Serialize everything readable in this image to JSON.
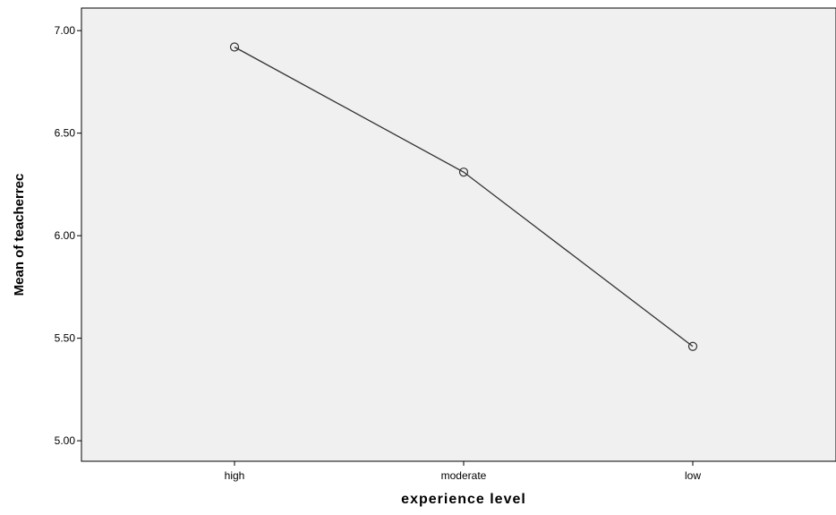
{
  "chart_data": {
    "type": "line",
    "title": "",
    "xlabel": "experience level",
    "ylabel": "Mean of teacherrec",
    "categories": [
      "high",
      "moderate",
      "low"
    ],
    "series": [
      {
        "values": [
          6.92,
          6.31,
          5.46
        ],
        "marker": "open-circle"
      }
    ],
    "ylim": [
      4.9,
      7.11
    ],
    "yticks": [
      5.0,
      5.5,
      6.0,
      6.5,
      7.0
    ],
    "ytick_labels": [
      "5.00",
      "5.50",
      "6.00",
      "6.50",
      "7.00"
    ],
    "grid": false,
    "legend": "none",
    "colors": {
      "plot_background": "#f0f0f0",
      "line": "#333333",
      "axis": "#000000"
    }
  }
}
